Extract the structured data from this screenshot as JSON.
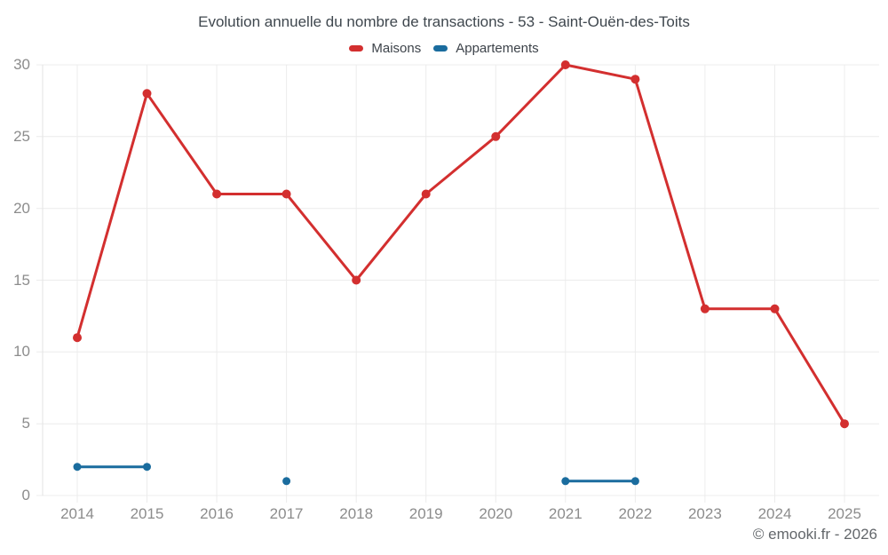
{
  "title": "Evolution annuelle du nombre de transactions - 53 - Saint-Ouën-des-Toits",
  "footer": "© emooki.fr - 2026",
  "colors": {
    "grid": "#ececec",
    "axis_border": "#e3e3e3",
    "axis_text": "#8c8c8c",
    "title_text": "#3f474e",
    "legend_text": "#3d434a",
    "footer_text": "#63676b",
    "background": "#ffffff"
  },
  "chart_data": {
    "type": "line",
    "title": "Evolution annuelle du nombre de transactions - 53 - Saint-Ouën-des-Toits",
    "categories": [
      "2014",
      "2015",
      "2016",
      "2017",
      "2018",
      "2019",
      "2020",
      "2021",
      "2022",
      "2023",
      "2024",
      "2025"
    ],
    "series": [
      {
        "name": "Maisons",
        "color": "#d32f2f",
        "point_radius": 5,
        "line_width": 3,
        "values": [
          11,
          28,
          21,
          21,
          15,
          21,
          25,
          30,
          29,
          13,
          13,
          5
        ]
      },
      {
        "name": "Appartements",
        "color": "#1a6c9e",
        "point_radius": 4.5,
        "line_width": 3,
        "values": [
          2,
          2,
          null,
          1,
          null,
          null,
          null,
          1,
          1,
          null,
          null,
          null
        ]
      }
    ],
    "xlabel": "",
    "ylabel": "",
    "ylim": [
      0,
      30
    ],
    "yticks": [
      0,
      5,
      10,
      15,
      20,
      25,
      30
    ],
    "grid": true,
    "legend_position": "top"
  }
}
